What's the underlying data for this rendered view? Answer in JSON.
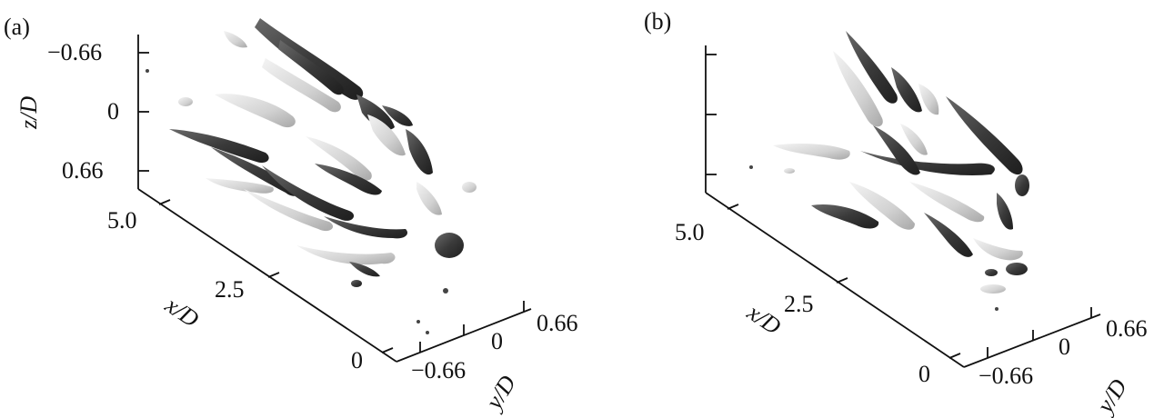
{
  "panels": [
    {
      "label": "(a)",
      "z_axis": {
        "label": "z/D",
        "ticks": [
          "−0.66",
          "0",
          "0.66"
        ]
      },
      "x_axis": {
        "label": "x/D",
        "ticks": [
          "5.0",
          "2.5",
          "0"
        ]
      },
      "y_axis": {
        "label": "y/D",
        "ticks": [
          "−0.66",
          "0",
          "0.66"
        ]
      }
    },
    {
      "label": "(b)",
      "z_axis": {
        "label": "",
        "ticks": []
      },
      "x_axis": {
        "label": "x/D",
        "ticks": [
          "5.0",
          "2.5",
          "0"
        ]
      },
      "y_axis": {
        "label": "y/D",
        "ticks": [
          "−0.66",
          "0",
          "0.66"
        ]
      }
    }
  ],
  "colors": {
    "dark_structure": "#3c3c3c",
    "light_structure": "#dcdcdc",
    "axis": "#111111"
  }
}
